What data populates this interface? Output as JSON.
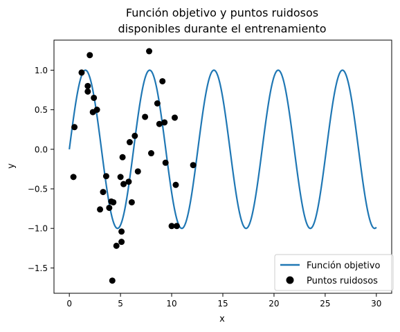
{
  "chart_data": {
    "type": "scatter",
    "title_line1": "Función objetivo y puntos ruidosos",
    "title_line2": "disponibles durante el entrenamiento",
    "xlabel": "x",
    "ylabel": "y",
    "xlim": [
      -1.5,
      31.5
    ],
    "ylim": [
      -1.82,
      1.38
    ],
    "xticks": [
      0,
      5,
      10,
      15,
      20,
      25,
      30
    ],
    "xtick_labels": [
      "0",
      "5",
      "10",
      "15",
      "20",
      "25",
      "30"
    ],
    "yticks": [
      -1.5,
      -1.0,
      -0.5,
      0.0,
      0.5,
      1.0
    ],
    "ytick_labels": [
      "−1.5",
      "−1.0",
      "−0.5",
      "0.0",
      "0.5",
      "1.0"
    ],
    "grid": false,
    "legend_position": "lower-right",
    "series": [
      {
        "name": "Función objetivo",
        "kind": "line",
        "color": "#1f77b4",
        "function": "sin",
        "x_range": [
          0,
          30
        ],
        "period": 6.28
      },
      {
        "name": "Puntos ruidosos",
        "kind": "scatter",
        "color": "#000000",
        "points": [
          [
            0.4,
            -0.35
          ],
          [
            0.5,
            0.28
          ],
          [
            1.2,
            0.97
          ],
          [
            1.8,
            0.73
          ],
          [
            1.8,
            0.8
          ],
          [
            2.0,
            1.19
          ],
          [
            2.3,
            0.47
          ],
          [
            2.4,
            0.65
          ],
          [
            2.7,
            0.5
          ],
          [
            3.0,
            -0.76
          ],
          [
            3.3,
            -0.54
          ],
          [
            3.6,
            -0.34
          ],
          [
            3.9,
            -0.74
          ],
          [
            4.1,
            -0.66
          ],
          [
            4.2,
            -1.66
          ],
          [
            4.3,
            -0.67
          ],
          [
            4.6,
            -1.22
          ],
          [
            5.0,
            -0.35
          ],
          [
            5.1,
            -1.04
          ],
          [
            5.1,
            -1.17
          ],
          [
            5.2,
            -0.1
          ],
          [
            5.3,
            -0.44
          ],
          [
            5.8,
            -0.41
          ],
          [
            5.9,
            0.09
          ],
          [
            6.1,
            -0.67
          ],
          [
            6.4,
            0.17
          ],
          [
            6.7,
            -0.28
          ],
          [
            7.4,
            0.41
          ],
          [
            7.8,
            1.24
          ],
          [
            8.0,
            -0.05
          ],
          [
            8.6,
            0.58
          ],
          [
            8.8,
            0.32
          ],
          [
            9.1,
            0.86
          ],
          [
            9.3,
            0.34
          ],
          [
            9.4,
            -0.17
          ],
          [
            10.0,
            -0.97
          ],
          [
            10.3,
            0.4
          ],
          [
            10.4,
            -0.45
          ],
          [
            10.5,
            -0.97
          ],
          [
            12.1,
            -0.2
          ]
        ]
      }
    ]
  }
}
